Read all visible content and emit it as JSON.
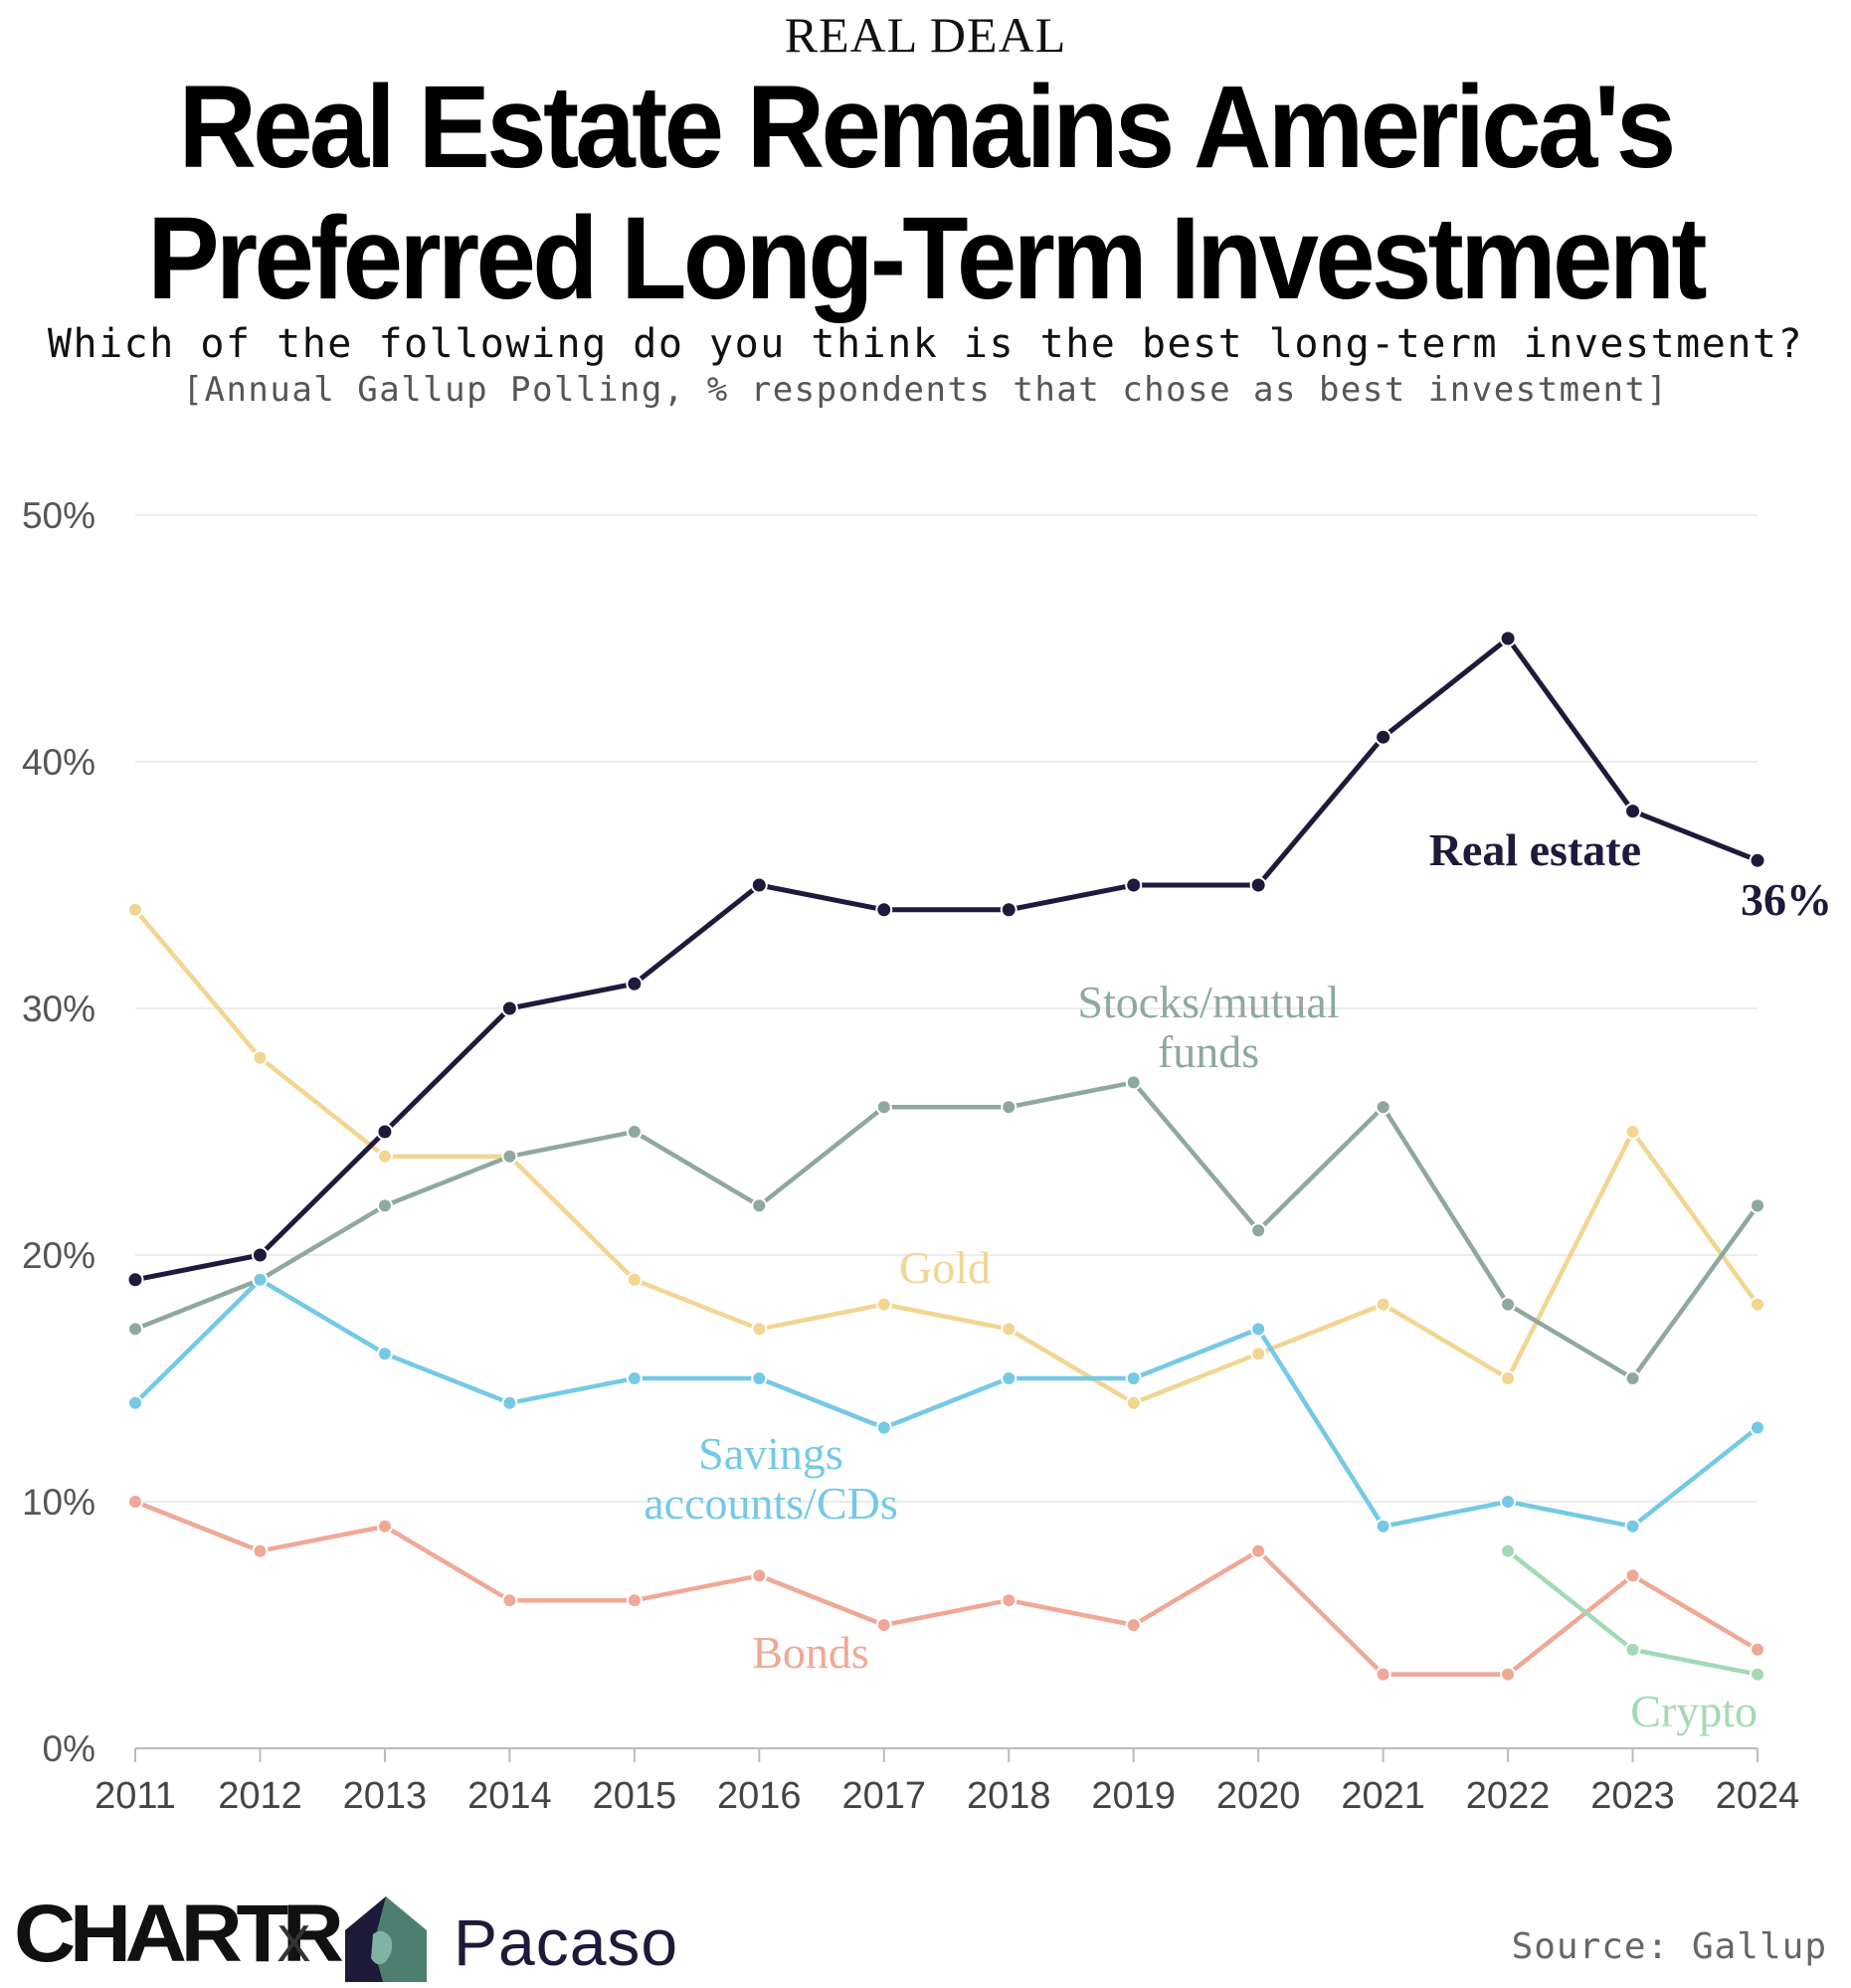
{
  "header": {
    "kicker": "REAL DEAL",
    "title_line1": "Real Estate Remains America's",
    "title_line2": "Preferred Long-Term Investment",
    "subtitle": "Which of the following do you think is the best long-term investment?",
    "note": "[Annual Gallup Polling, % respondents that chose as best investment]"
  },
  "footer": {
    "brand": "CHARTR",
    "cross": "X",
    "partner": "Pacaso",
    "source": "Source: Gallup"
  },
  "chart_data": {
    "type": "line",
    "title": "Real Estate Remains America's Preferred Long-Term Investment",
    "xlabel": "",
    "ylabel": "% respondents that chose as best investment",
    "ylim": [
      0,
      50
    ],
    "yticks": [
      "0%",
      "10%",
      "20%",
      "30%",
      "40%",
      "50%"
    ],
    "grid": true,
    "x": [
      2011,
      2012,
      2013,
      2014,
      2015,
      2016,
      2017,
      2018,
      2019,
      2020,
      2021,
      2022,
      2023,
      2024
    ],
    "series": [
      {
        "name": "Gold",
        "label": "Gold",
        "color": "#f2d591",
        "values": [
          34,
          28,
          24,
          24,
          19,
          17,
          18,
          17,
          14,
          16,
          18,
          15,
          25,
          18
        ]
      },
      {
        "name": "Stocks/mutual funds",
        "label": [
          "Stocks/mutual",
          "funds"
        ],
        "color": "#8fa89e",
        "values": [
          17,
          19,
          22,
          24,
          25,
          22,
          26,
          26,
          27,
          21,
          26,
          18,
          15,
          22
        ]
      },
      {
        "name": "Savings accounts/CDs",
        "label": [
          "Savings",
          "accounts/CDs"
        ],
        "color": "#74c9e5",
        "values": [
          14,
          19,
          16,
          14,
          15,
          15,
          13,
          15,
          15,
          17,
          9,
          10,
          9,
          13
        ]
      },
      {
        "name": "Bonds",
        "label": "Bonds",
        "color": "#f0a896",
        "values": [
          10,
          8,
          9,
          6,
          6,
          7,
          5,
          6,
          5,
          8,
          3,
          3,
          7,
          4
        ]
      },
      {
        "name": "Crypto",
        "label": "Crypto",
        "color": "#a3d9b4",
        "values": [
          null,
          null,
          null,
          null,
          null,
          null,
          null,
          null,
          null,
          null,
          null,
          8,
          4,
          3
        ]
      },
      {
        "name": "Real estate",
        "label": "Real estate",
        "color": "#1e1a3b",
        "values": [
          19,
          20,
          25,
          30,
          31,
          35,
          34,
          34,
          35,
          35,
          41,
          45,
          38,
          36
        ]
      }
    ],
    "end_label": "36%"
  }
}
